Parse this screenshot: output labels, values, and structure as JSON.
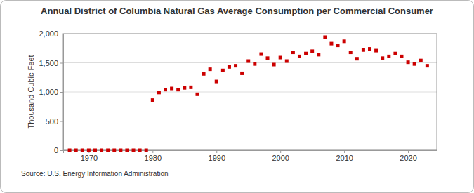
{
  "chart_data": {
    "type": "scatter",
    "title": "Annual District of Columbia Natural Gas Average Consumption per Commercial Consumer",
    "y_label": "Thousand Cubic Feet",
    "source": "Source: U.S. Energy Information Administration",
    "x": [
      1967,
      1968,
      1969,
      1970,
      1971,
      1972,
      1973,
      1974,
      1975,
      1976,
      1977,
      1978,
      1979,
      1980,
      1981,
      1982,
      1983,
      1984,
      1985,
      1986,
      1987,
      1988,
      1989,
      1990,
      1991,
      1992,
      1993,
      1994,
      1995,
      1996,
      1997,
      1998,
      1999,
      2000,
      2001,
      2002,
      2003,
      2004,
      2005,
      2006,
      2007,
      2008,
      2009,
      2010,
      2011,
      2012,
      2013,
      2014,
      2015,
      2016,
      2017,
      2018,
      2019,
      2020,
      2021,
      2022,
      2023
    ],
    "values": [
      0,
      0,
      0,
      0,
      0,
      0,
      0,
      0,
      0,
      0,
      0,
      0,
      0,
      860,
      990,
      1040,
      1060,
      1040,
      1070,
      1080,
      960,
      1310,
      1390,
      1180,
      1370,
      1430,
      1450,
      1320,
      1530,
      1480,
      1650,
      1580,
      1470,
      1590,
      1530,
      1680,
      1610,
      1660,
      1700,
      1640,
      1940,
      1830,
      1800,
      1870,
      1680,
      1570,
      1720,
      1740,
      1710,
      1580,
      1610,
      1660,
      1610,
      1510,
      1480,
      1540,
      1450
    ],
    "color": "#cc0000",
    "marker": "square",
    "xlim": [
      1966,
      2024.5
    ],
    "xticks": [
      1970,
      1980,
      1990,
      2000,
      2010,
      2020
    ],
    "ylim": [
      0,
      2000
    ],
    "yticks": [
      0,
      500,
      {
        "value": 1000,
        "label": "1,000"
      },
      {
        "value": 1500,
        "label": "1,500"
      },
      {
        "value": 2000,
        "label": "2,000"
      }
    ],
    "grid": true
  }
}
